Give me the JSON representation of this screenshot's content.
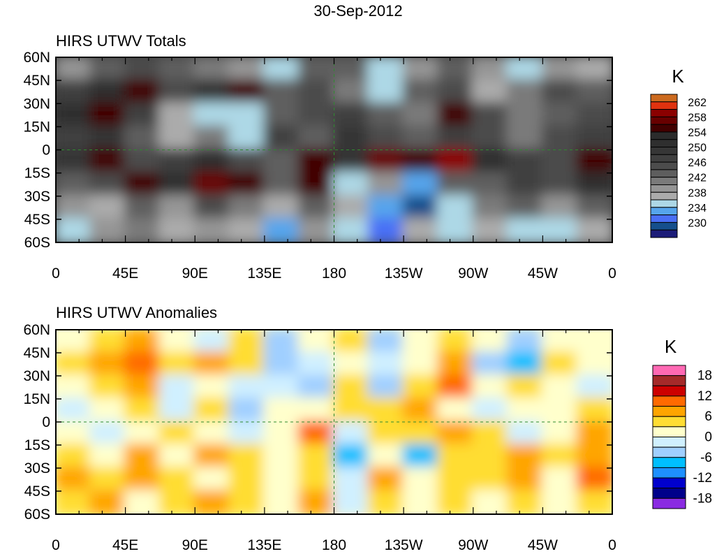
{
  "title": "30-Sep-2012",
  "chart_data": [
    {
      "type": "heatmap",
      "title": "HIRS UTWV Totals",
      "units_label": "K",
      "ytick_labels": [
        "60N",
        "45N",
        "30N",
        "15N",
        "0",
        "15S",
        "30S",
        "45S",
        "60S"
      ],
      "xtick_labels": [
        "0",
        "45E",
        "90E",
        "135E",
        "180",
        "135W",
        "90W",
        "45W",
        "0"
      ],
      "lat_range": [
        -60,
        60
      ],
      "lon_range": [
        0,
        360
      ],
      "levels": [
        230,
        232,
        234,
        236,
        238,
        240,
        242,
        244,
        246,
        248,
        250,
        252,
        254,
        256,
        258,
        260,
        262
      ],
      "colorbar_labels": [
        "262",
        "258",
        "254",
        "250",
        "246",
        "242",
        "238",
        "234",
        "230"
      ],
      "colors_high_to_low": [
        "#cc6a1e",
        "#e0320f",
        "#8b0000",
        "#680000",
        "#420000",
        "#2b2b2b",
        "#2f2f2f",
        "#363636",
        "#404040",
        "#4c4c4c",
        "#5e5e5e",
        "#7a7a7a",
        "#959595",
        "#ababab",
        "#add8e6",
        "#56a5ec",
        "#4a6ff5",
        "#154f8c",
        "#1c1c78"
      ],
      "field_rows_north_to_south": [
        [
          240,
          244,
          246,
          244,
          242,
          240,
          236,
          244,
          244,
          236,
          240,
          244,
          240,
          236,
          240,
          238
        ],
        [
          248,
          252,
          256,
          246,
          250,
          256,
          244,
          246,
          242,
          236,
          244,
          246,
          238,
          242,
          246,
          244
        ],
        [
          252,
          256,
          248,
          238,
          236,
          236,
          244,
          246,
          248,
          244,
          242,
          256,
          246,
          242,
          244,
          246
        ],
        [
          248,
          250,
          244,
          238,
          242,
          236,
          248,
          244,
          250,
          246,
          244,
          248,
          246,
          242,
          246,
          248
        ],
        [
          250,
          256,
          246,
          248,
          252,
          246,
          244,
          256,
          250,
          258,
          256,
          260,
          252,
          248,
          246,
          256
        ],
        [
          244,
          246,
          256,
          252,
          258,
          256,
          244,
          256,
          236,
          240,
          234,
          244,
          244,
          248,
          246,
          252
        ],
        [
          240,
          238,
          244,
          240,
          246,
          242,
          238,
          244,
          238,
          234,
          230,
          236,
          242,
          244,
          240,
          244
        ],
        [
          236,
          240,
          242,
          238,
          240,
          238,
          234,
          240,
          236,
          232,
          238,
          236,
          238,
          236,
          236,
          238
        ]
      ]
    },
    {
      "type": "heatmap",
      "title": "HIRS UTWV Anomalies",
      "units_label": "K",
      "ytick_labels": [
        "60N",
        "45N",
        "30N",
        "15N",
        "0",
        "15S",
        "30S",
        "45S",
        "60S"
      ],
      "xtick_labels": [
        "0",
        "45E",
        "90E",
        "135E",
        "180",
        "135W",
        "90W",
        "45W",
        "0"
      ],
      "lat_range": [
        -60,
        60
      ],
      "lon_range": [
        0,
        360
      ],
      "levels": [
        -18,
        -15,
        -12,
        -9,
        -6,
        -3,
        0,
        3,
        6,
        9,
        12,
        15,
        18
      ],
      "colorbar_labels": [
        "18",
        "12",
        "6",
        "0",
        "-6",
        "-12",
        "-18"
      ],
      "colors_high_to_low": [
        "#ff69b4",
        "#a52a2a",
        "#cd0000",
        "#ff6a00",
        "#ffa500",
        "#ffdd33",
        "#ffffcc",
        "#d0f0ff",
        "#a0cfff",
        "#00bfff",
        "#1e90ff",
        "#0000cd",
        "#00008b",
        "#8a2be2"
      ],
      "field_rows_north_to_south": [
        [
          0,
          3,
          6,
          0,
          -3,
          3,
          -6,
          0,
          3,
          -6,
          0,
          3,
          0,
          -6,
          0,
          0
        ],
        [
          3,
          6,
          9,
          3,
          6,
          3,
          -6,
          -3,
          0,
          -3,
          0,
          6,
          -6,
          -9,
          3,
          0
        ],
        [
          0,
          3,
          6,
          -3,
          0,
          -3,
          -3,
          -6,
          3,
          -6,
          3,
          9,
          0,
          3,
          0,
          -3
        ],
        [
          -3,
          0,
          3,
          -3,
          3,
          -6,
          0,
          0,
          3,
          3,
          6,
          0,
          -3,
          0,
          0,
          3
        ],
        [
          0,
          -3,
          0,
          3,
          0,
          -3,
          0,
          9,
          -3,
          3,
          3,
          6,
          3,
          -3,
          0,
          6
        ],
        [
          3,
          0,
          6,
          0,
          6,
          3,
          0,
          3,
          -9,
          0,
          -9,
          3,
          3,
          6,
          3,
          6
        ],
        [
          6,
          3,
          6,
          3,
          0,
          3,
          0,
          3,
          -3,
          6,
          0,
          3,
          3,
          6,
          0,
          9
        ],
        [
          3,
          6,
          0,
          3,
          6,
          3,
          0,
          6,
          -3,
          3,
          0,
          3,
          0,
          3,
          0,
          3
        ]
      ]
    }
  ]
}
